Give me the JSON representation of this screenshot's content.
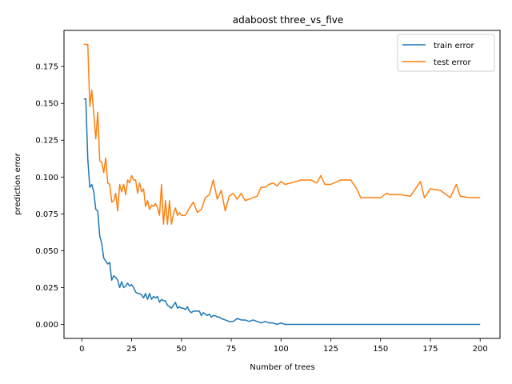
{
  "chart_data": {
    "type": "line",
    "title": "adaboost three_vs_five",
    "xlabel": "Number of trees",
    "ylabel": "prediction error",
    "xlim": [
      -8.95,
      209.95
    ],
    "ylim": [
      -0.0095,
      0.1995
    ],
    "xticks": [
      0,
      25,
      50,
      75,
      100,
      125,
      150,
      175,
      200
    ],
    "xtick_labels": [
      "0",
      "25",
      "50",
      "75",
      "100",
      "125",
      "150",
      "175",
      "200"
    ],
    "yticks": [
      0.0,
      0.025,
      0.05,
      0.075,
      0.1,
      0.125,
      0.15,
      0.175
    ],
    "ytick_labels": [
      "0.000",
      "0.025",
      "0.050",
      "0.075",
      "0.100",
      "0.125",
      "0.150",
      "0.175"
    ],
    "grid": false,
    "legend_position": "top-right",
    "series": [
      {
        "name": "train error",
        "color": "#1f77b4",
        "x": [
          1,
          2,
          3,
          4,
          5,
          6,
          7,
          8,
          9,
          10,
          11,
          12,
          13,
          14,
          15,
          16,
          17,
          18,
          19,
          20,
          21,
          22,
          23,
          24,
          25,
          26,
          27,
          28,
          29,
          30,
          31,
          32,
          33,
          34,
          35,
          36,
          37,
          38,
          39,
          40,
          41,
          42,
          43,
          44,
          45,
          46,
          47,
          48,
          49,
          50,
          51,
          52,
          53,
          54,
          55,
          56,
          57,
          58,
          59,
          60,
          61,
          62,
          63,
          64,
          65,
          66,
          67,
          68,
          69,
          70,
          72,
          74,
          76,
          78,
          80,
          82,
          84,
          86,
          88,
          90,
          92,
          94,
          96,
          98,
          100,
          102,
          105,
          110,
          120,
          130,
          140,
          150,
          160,
          170,
          180,
          190,
          200
        ],
        "y": [
          0.153,
          0.153,
          0.112,
          0.093,
          0.095,
          0.09,
          0.078,
          0.077,
          0.06,
          0.055,
          0.045,
          0.043,
          0.041,
          0.042,
          0.03,
          0.033,
          0.032,
          0.03,
          0.025,
          0.029,
          0.025,
          0.026,
          0.028,
          0.026,
          0.027,
          0.025,
          0.022,
          0.021,
          0.021,
          0.02,
          0.018,
          0.021,
          0.017,
          0.021,
          0.017,
          0.019,
          0.018,
          0.019,
          0.015,
          0.017,
          0.016,
          0.016,
          0.013,
          0.012,
          0.011,
          0.013,
          0.015,
          0.011,
          0.012,
          0.011,
          0.011,
          0.01,
          0.012,
          0.009,
          0.008,
          0.009,
          0.009,
          0.009,
          0.009,
          0.006,
          0.008,
          0.007,
          0.006,
          0.007,
          0.005,
          0.006,
          0.006,
          0.005,
          0.005,
          0.004,
          0.003,
          0.002,
          0.002,
          0.004,
          0.003,
          0.003,
          0.002,
          0.003,
          0.002,
          0.001,
          0.002,
          0.001,
          0.001,
          0.0,
          0.001,
          0.0,
          0.0,
          0.0,
          0.0,
          0.0,
          0.0,
          0.0,
          0.0,
          0.0,
          0.0,
          0.0,
          0.0
        ]
      },
      {
        "name": "test error",
        "color": "#ff7f0e",
        "x": [
          1,
          2,
          3,
          4,
          5,
          6,
          7,
          8,
          9,
          10,
          11,
          12,
          13,
          14,
          15,
          16,
          17,
          18,
          19,
          20,
          21,
          22,
          23,
          24,
          25,
          26,
          27,
          28,
          29,
          30,
          31,
          32,
          33,
          34,
          35,
          36,
          37,
          38,
          39,
          40,
          41,
          42,
          43,
          44,
          45,
          46,
          47,
          48,
          49,
          50,
          52,
          54,
          56,
          58,
          60,
          62,
          64,
          66,
          68,
          70,
          72,
          74,
          76,
          78,
          80,
          82,
          84,
          86,
          88,
          90,
          92,
          94,
          96,
          98,
          100,
          102,
          105,
          110,
          115,
          118,
          120,
          122,
          125,
          130,
          135,
          138,
          140,
          145,
          150,
          153,
          155,
          160,
          165,
          170,
          172,
          175,
          180,
          185,
          188,
          190,
          195,
          200
        ],
        "y": [
          0.19,
          0.19,
          0.19,
          0.148,
          0.159,
          0.143,
          0.126,
          0.144,
          0.111,
          0.11,
          0.103,
          0.113,
          0.096,
          0.095,
          0.083,
          0.084,
          0.089,
          0.077,
          0.095,
          0.09,
          0.095,
          0.088,
          0.098,
          0.096,
          0.101,
          0.098,
          0.098,
          0.089,
          0.096,
          0.09,
          0.092,
          0.08,
          0.084,
          0.078,
          0.081,
          0.08,
          0.082,
          0.079,
          0.074,
          0.095,
          0.068,
          0.084,
          0.068,
          0.084,
          0.068,
          0.075,
          0.079,
          0.074,
          0.076,
          0.074,
          0.074,
          0.079,
          0.083,
          0.076,
          0.078,
          0.086,
          0.088,
          0.098,
          0.085,
          0.091,
          0.077,
          0.087,
          0.089,
          0.085,
          0.089,
          0.084,
          0.085,
          0.086,
          0.087,
          0.093,
          0.093,
          0.095,
          0.096,
          0.094,
          0.097,
          0.095,
          0.096,
          0.098,
          0.098,
          0.096,
          0.101,
          0.095,
          0.095,
          0.098,
          0.098,
          0.092,
          0.086,
          0.086,
          0.086,
          0.089,
          0.088,
          0.088,
          0.087,
          0.097,
          0.086,
          0.092,
          0.091,
          0.086,
          0.095,
          0.087,
          0.086,
          0.086
        ]
      }
    ]
  }
}
